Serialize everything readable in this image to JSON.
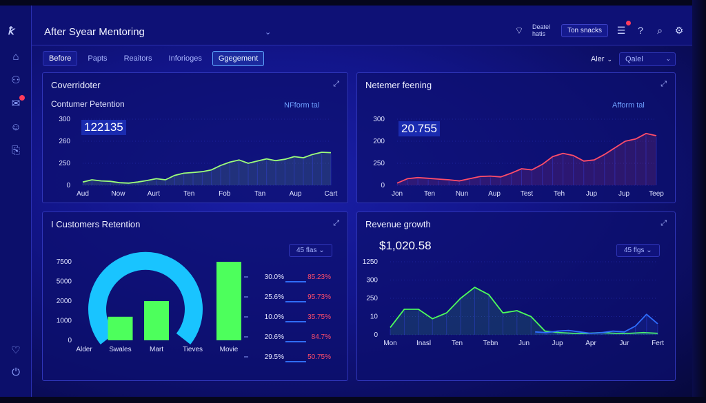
{
  "header": {
    "app_title": "After Syear Mentoring",
    "status_text_line1": "Deatel",
    "status_text_line2": "hatis",
    "button_label": "Ton snacks"
  },
  "tabs": [
    {
      "label": "Before",
      "state": "active"
    },
    {
      "label": "Papts",
      "state": "normal"
    },
    {
      "label": "Reaitors",
      "state": "normal"
    },
    {
      "label": "Inforioges",
      "state": "normal"
    },
    {
      "label": "Ggegement",
      "state": "highlight"
    }
  ],
  "filters": {
    "label": "Aler",
    "select_value": "Qalel"
  },
  "panels": {
    "top_left": {
      "title": "Coverridoter",
      "subtitle": "Contumer Petention",
      "legend": "NFform tal",
      "value": "122135",
      "chart_data": {
        "type": "area",
        "yticks": [
          "300",
          "260",
          "250",
          "0"
        ],
        "xticks": [
          "Aud",
          "Now",
          "Aurt",
          "Ten",
          "Fob",
          "Tan",
          "Aup",
          "Cart"
        ],
        "ylim": [
          0,
          300
        ],
        "series": [
          {
            "color": "#9dff7a",
            "values": [
              15,
              25,
              20,
              18,
              12,
              10,
              15,
              22,
              30,
              25,
              45,
              55,
              58,
              62,
              70,
              90,
              105,
              115,
              100,
              110,
              120,
              112,
              118,
              130,
              125,
              140,
              150,
              148
            ]
          }
        ]
      }
    },
    "top_right": {
      "title": "Netemer feening",
      "legend": "Afform tal",
      "value": "20.755",
      "chart_data": {
        "type": "area",
        "yticks": [
          "300",
          "200",
          "250",
          "0"
        ],
        "xticks": [
          "Jon",
          "Ten",
          "Nun",
          "Aup",
          "Test",
          "Teh",
          "Jup",
          "Jup",
          "Teep"
        ],
        "ylim": [
          0,
          300
        ],
        "series": [
          {
            "color": "#ff4d6a",
            "values": [
              10,
              30,
              35,
              32,
              28,
              25,
              20,
              30,
              40,
              42,
              38,
              55,
              75,
              70,
              95,
              130,
              145,
              135,
              110,
              115,
              140,
              170,
              200,
              210,
              235,
              225
            ]
          }
        ]
      }
    },
    "bottom_left": {
      "title": "I Customers Retention",
      "dropdown": "45 flas",
      "chart_data": {
        "type": "bar",
        "yticks": [
          "7500",
          "5000",
          "2000",
          "1000",
          "0"
        ],
        "categories": [
          "Alder",
          "Swales",
          "Mart",
          "Tieves",
          "Movie"
        ],
        "values": [
          0,
          1200,
          2000,
          0,
          4000
        ],
        "ylim": [
          0,
          4000
        ],
        "series_colors": [
          "#4dff5c",
          "#4dff5c",
          "#4dff5c",
          "#4dff5c",
          "#4dff5c"
        ],
        "overlay_color": "#19c4ff"
      },
      "table": [
        {
          "left": "30.0%",
          "right": "85.23%"
        },
        {
          "left": "25.6%",
          "right": "95.73%"
        },
        {
          "left": "10.0%",
          "right": "35.75%"
        },
        {
          "left": "20.6%",
          "right": "84.7%"
        },
        {
          "left": "29.5%",
          "right": "50.75%"
        }
      ]
    },
    "bottom_right": {
      "title": "Revenue growth",
      "value": "$1,020.58",
      "dropdown": "45 flgs",
      "chart_data": {
        "type": "area",
        "yticks": [
          "1250",
          "300",
          "250",
          "10",
          "0"
        ],
        "xticks": [
          "Mon",
          "Inasl",
          "Ten",
          "Tebn",
          "Jun",
          "Jup",
          "Apr",
          "Jur",
          "Fert"
        ],
        "ylim": [
          0,
          100
        ],
        "series": [
          {
            "color": "#4dff5c",
            "values": [
              10,
              35,
              35,
              22,
              30,
              50,
              65,
              55,
              30,
              33,
              25,
              5,
              3,
              2,
              2,
              3,
              2,
              2,
              3,
              2
            ]
          },
          {
            "color": "#2f6dff",
            "values": [
              null,
              null,
              null,
              null,
              null,
              null,
              null,
              null,
              null,
              null,
              null,
              null,
              null,
              4,
              3,
              5,
              6,
              4,
              2,
              3,
              5,
              4,
              12,
              28,
              15
            ]
          }
        ]
      }
    }
  },
  "colors": {
    "accent_green": "#4dff5c",
    "accent_red": "#ff4d6a",
    "accent_cyan": "#19c4ff",
    "accent_blue": "#2f6dff"
  }
}
